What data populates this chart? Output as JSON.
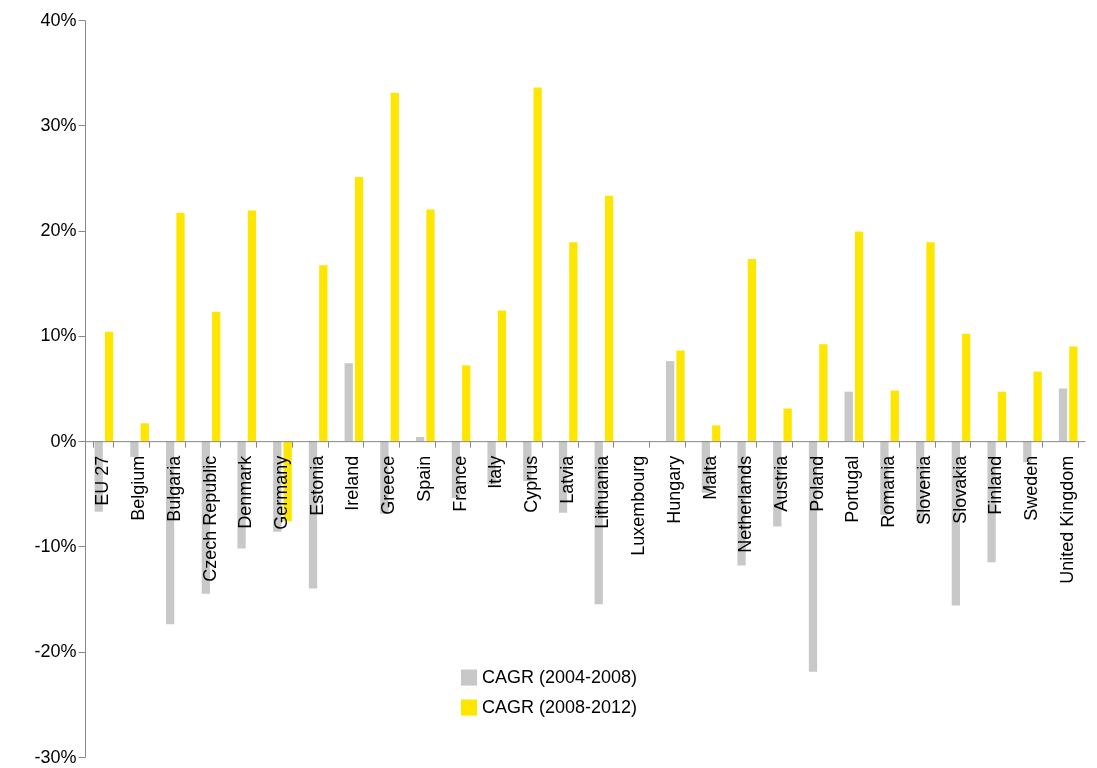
{
  "chart_data": {
    "type": "bar",
    "categories": [
      "EU 27",
      "Belgium",
      "Bulgaria",
      "Czech Republic",
      "Denmark",
      "Germany",
      "Estonia",
      "Ireland",
      "Greece",
      "Spain",
      "France",
      "Italy",
      "Cyprus",
      "Latvia",
      "Lithuania",
      "Luxembourg",
      "Hungary",
      "Malta",
      "Netherlands",
      "Austria",
      "Poland",
      "Portugal",
      "Romania",
      "Slovenia",
      "Slovakia",
      "Finland",
      "Sweden",
      "United Kingdom"
    ],
    "series": [
      {
        "name": "CAGR (2004-2008)",
        "color": "#c8c8c8",
        "values": [
          -6.7,
          -1.5,
          -17.4,
          -14.5,
          -10.2,
          -8.6,
          -14.0,
          7.4,
          -6.9,
          0.4,
          -5.4,
          -4.1,
          -3.8,
          -6.8,
          -15.5,
          null,
          7.6,
          -4.9,
          -11.8,
          -8.1,
          -21.9,
          4.7,
          -7.0,
          -7.6,
          -15.6,
          -11.5,
          -2.0,
          5.0
        ]
      },
      {
        "name": "CAGR (2008-2012)",
        "color": "#ffe600",
        "values": [
          10.4,
          1.7,
          21.7,
          12.3,
          21.9,
          -7.6,
          16.7,
          25.1,
          33.1,
          22.0,
          7.2,
          12.4,
          33.6,
          18.9,
          23.3,
          null,
          8.6,
          1.5,
          17.3,
          3.1,
          9.2,
          19.9,
          4.8,
          18.9,
          10.2,
          4.7,
          6.6,
          9.0
        ]
      }
    ],
    "ylim": [
      -30,
      40
    ],
    "yticks": [
      {
        "value": -30,
        "label": "-30%"
      },
      {
        "value": -20,
        "label": "-20%"
      },
      {
        "value": -10,
        "label": "-10%"
      },
      {
        "value": 0,
        "label": "0%"
      },
      {
        "value": 10,
        "label": "10%"
      },
      {
        "value": 20,
        "label": "20%"
      },
      {
        "value": 30,
        "label": "30%"
      },
      {
        "value": 40,
        "label": "40%"
      }
    ],
    "legend": "bottom",
    "grid": false
  }
}
